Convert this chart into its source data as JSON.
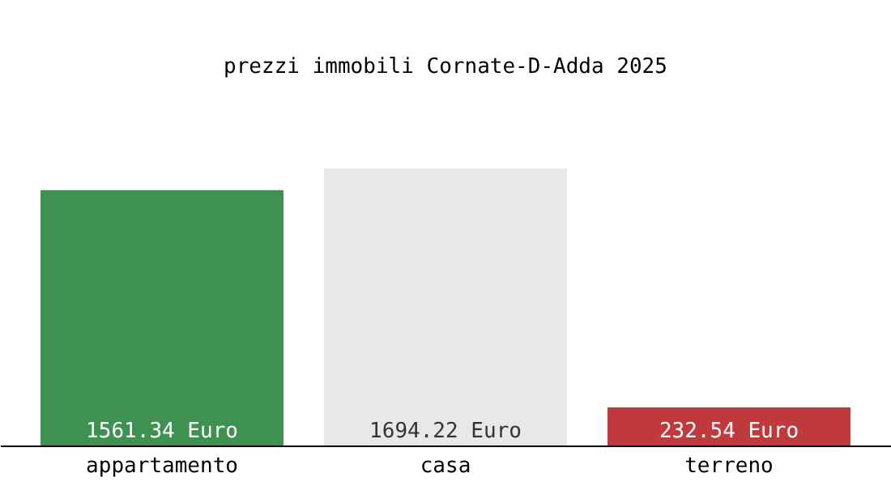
{
  "chart_data": {
    "type": "bar",
    "title": "prezzi immobili Cornate-D-Adda 2025",
    "categories": [
      "appartamento",
      "casa",
      "terreno"
    ],
    "values": [
      1561.34,
      1694.22,
      232.54
    ],
    "colors": [
      "#3f9151",
      "#e8e8e8",
      "#c0393c"
    ],
    "value_labels": [
      "1561.34 Euro",
      "1694.22 Euro",
      "232.54 Euro"
    ]
  }
}
